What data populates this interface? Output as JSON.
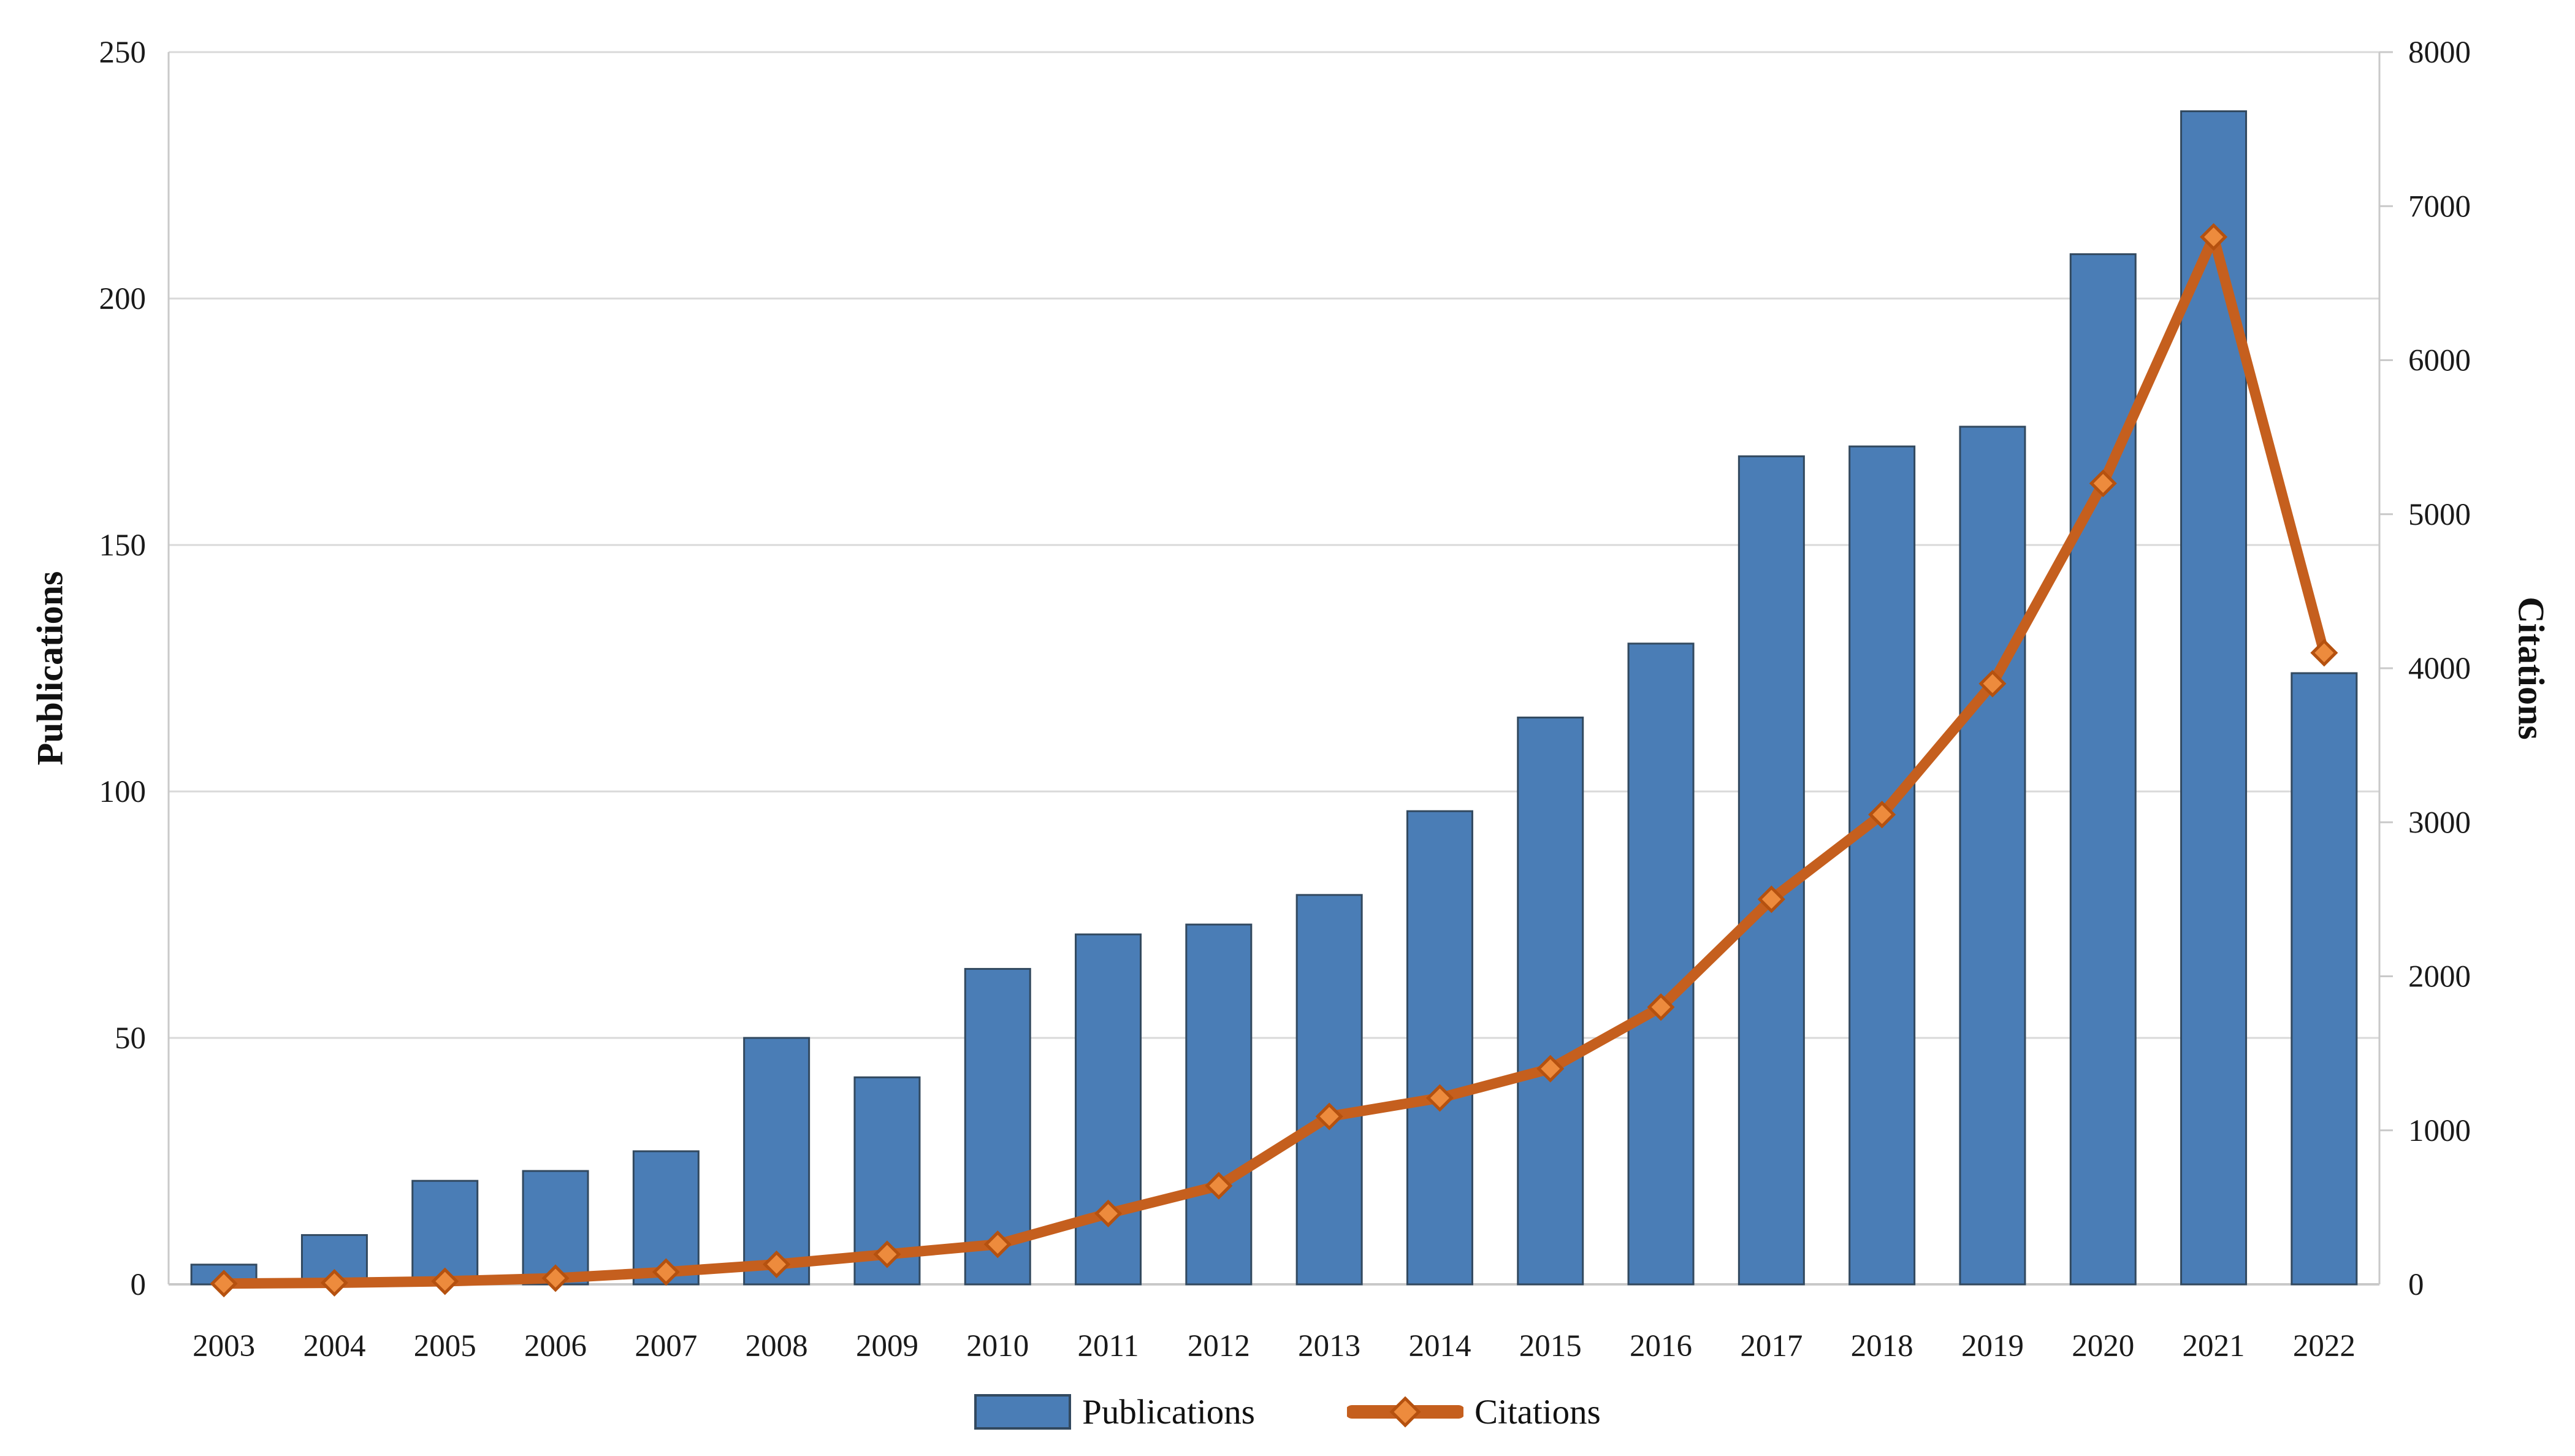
{
  "chart_data": {
    "type": "bar+line combo",
    "title": "",
    "categories": [
      "2003",
      "2004",
      "2005",
      "2006",
      "2007",
      "2008",
      "2009",
      "2010",
      "2011",
      "2012",
      "2013",
      "2014",
      "2015",
      "2016",
      "2017",
      "2018",
      "2019",
      "2020",
      "2021",
      "2022"
    ],
    "series": [
      {
        "name": "Publications",
        "type": "bar",
        "axis": "left",
        "values": [
          4,
          10,
          21,
          23,
          27,
          50,
          42,
          64,
          71,
          73,
          79,
          96,
          115,
          130,
          168,
          170,
          174,
          209,
          238,
          124
        ]
      },
      {
        "name": "Citations",
        "type": "line",
        "axis": "right",
        "values": [
          5,
          10,
          20,
          40,
          80,
          130,
          195,
          260,
          460,
          640,
          1090,
          1210,
          1400,
          1800,
          2500,
          3050,
          3900,
          5200,
          6800,
          4100
        ]
      }
    ],
    "left_axis": {
      "title": "Publications",
      "min": 0,
      "max": 250,
      "tick_step": 50,
      "tick_labels": [
        "0",
        "50",
        "100",
        "150",
        "200",
        "250"
      ]
    },
    "right_axis": {
      "title": "Citations",
      "min": 0,
      "max": 8000,
      "tick_step": 1000,
      "tick_labels": [
        "0",
        "1000",
        "2000",
        "3000",
        "4000",
        "5000",
        "6000",
        "7000",
        "8000"
      ]
    },
    "legend": {
      "position": "bottom",
      "entries": [
        "Publications",
        "Citations"
      ]
    },
    "grid": "horizontal",
    "colors": {
      "bar_fill": "#4a7db6",
      "bar_border": "#32495f",
      "line": "#c55f1e",
      "marker_fill": "#ed8b3d",
      "marker_stroke": "#b5510f",
      "gridline": "#d9d9d9",
      "axis_line": "#c9c9c9",
      "text": "#1a1a1a"
    }
  }
}
